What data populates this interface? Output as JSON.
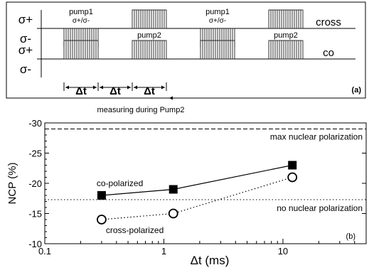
{
  "panel_a": {
    "label": "(a)",
    "rows": [
      {
        "mode": "cross",
        "sigma_plus": "σ+",
        "sigma_minus": "σ-",
        "pulses": [
          {
            "name": "pump1",
            "pol": "σ+/σ-",
            "side": "minus"
          },
          {
            "name": "pump2",
            "pol": "σ+",
            "side": "plus"
          },
          {
            "name": "pump1",
            "pol": "σ+/σ-",
            "side": "minus"
          },
          {
            "name": "pump2",
            "pol": "σ+",
            "side": "plus"
          }
        ]
      },
      {
        "mode": "co",
        "sigma_plus": "σ+",
        "sigma_minus": "σ-",
        "pulses": [
          {
            "side": "plus"
          },
          {
            "side": "plus"
          },
          {
            "side": "plus"
          },
          {
            "side": "plus"
          }
        ]
      }
    ],
    "delta_t": "Δt",
    "measuring_note": "measuring during Pump2"
  },
  "chart_data": {
    "type": "line",
    "panel_label": "(b)",
    "xlabel": "Δt (ms)",
    "ylabel": "NCP (%)",
    "xscale": "log",
    "xlim": [
      0.1,
      50
    ],
    "ylim": [
      -10,
      -30
    ],
    "yaxis_inverted": true,
    "x_ticks": [
      0.1,
      1,
      10
    ],
    "x_tick_labels": [
      "0.1",
      "1",
      "10"
    ],
    "y_ticks": [
      -30,
      -25,
      -20,
      -15,
      -10
    ],
    "y_tick_labels": [
      "-30",
      "-25",
      "-20",
      "-15",
      "-10"
    ],
    "series": [
      {
        "name": "co-polarized",
        "marker": "filled-square",
        "line": "solid",
        "x": [
          0.3,
          1.2,
          12
        ],
        "y": [
          -18,
          -19,
          -23
        ]
      },
      {
        "name": "cross-polarized",
        "marker": "open-circle",
        "line": "dotted",
        "x": [
          0.3,
          1.2,
          12
        ],
        "y": [
          -14,
          -15,
          -21
        ]
      }
    ],
    "reference_lines": [
      {
        "label": "max nuclear polarization",
        "y": -29,
        "style": "dashed"
      },
      {
        "label": "no nuclear polarization",
        "y": -17.3,
        "style": "dotted"
      }
    ]
  }
}
